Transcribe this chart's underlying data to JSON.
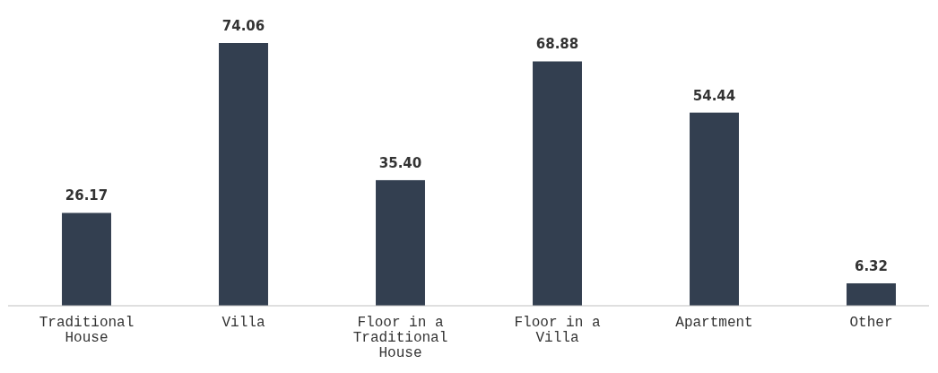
{
  "chart_data": {
    "type": "bar",
    "categories": [
      "Traditional House",
      "Villa",
      "Floor in a Traditional House",
      "Floor in a Villa",
      "Apartment",
      "Other"
    ],
    "values": [
      26.17,
      74.06,
      35.4,
      68.88,
      54.44,
      6.32
    ],
    "value_labels": [
      "26.17",
      "74.06",
      "35.40",
      "68.88",
      "54.44",
      "6.32"
    ],
    "color": "#333f50"
  }
}
